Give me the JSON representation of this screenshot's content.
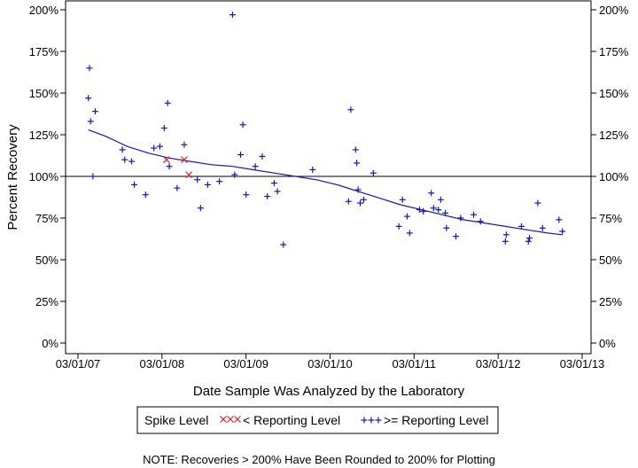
{
  "chart_data": {
    "type": "scatter",
    "title": "",
    "xlabel": "Date Sample Was Analyzed by the Laboratory",
    "ylabel": "Percent Recovery",
    "x_tick_labels": [
      "03/01/07",
      "03/01/08",
      "03/01/09",
      "03/01/10",
      "03/01/11",
      "03/01/12",
      "03/01/13"
    ],
    "y_tick_labels": [
      "0%",
      "25%",
      "50%",
      "75%",
      "100%",
      "125%",
      "150%",
      "175%",
      "200%"
    ],
    "ylim": [
      0,
      200
    ],
    "reference_line": 100,
    "grid": false,
    "legend_placement": "bottom-center",
    "legend_title": "Spike Level",
    "note": "NOTE: Recoveries > 200% Have Been Rounded to 200% for Plotting",
    "colors": {
      "above": "#1515c8",
      "below": "#e0202a",
      "trend": "#1515c8"
    },
    "series": [
      {
        "name": "< Reporting Level",
        "marker": "x",
        "points": [
          {
            "x": "2008-03-20",
            "y": 110
          },
          {
            "x": "2008-06-05",
            "y": 110
          },
          {
            "x": "2008-06-25",
            "y": 101
          }
        ]
      },
      {
        "name": ">= Reporting Level",
        "marker": "+",
        "points": [
          {
            "x": "2007-04-20",
            "y": 165
          },
          {
            "x": "2007-04-15",
            "y": 147
          },
          {
            "x": "2007-04-25",
            "y": 133
          },
          {
            "x": "2007-05-15",
            "y": 139
          },
          {
            "x": "2007-05-05",
            "y": 100
          },
          {
            "x": "2007-09-10",
            "y": 116
          },
          {
            "x": "2007-09-20",
            "y": 110
          },
          {
            "x": "2007-10-20",
            "y": 109
          },
          {
            "x": "2007-11-01",
            "y": 95
          },
          {
            "x": "2007-12-20",
            "y": 89
          },
          {
            "x": "2008-01-25",
            "y": 117
          },
          {
            "x": "2008-02-20",
            "y": 118
          },
          {
            "x": "2008-03-10",
            "y": 129
          },
          {
            "x": "2008-03-25",
            "y": 144
          },
          {
            "x": "2008-04-01",
            "y": 106
          },
          {
            "x": "2008-05-05",
            "y": 93
          },
          {
            "x": "2008-06-05",
            "y": 119
          },
          {
            "x": "2008-08-01",
            "y": 98
          },
          {
            "x": "2008-08-15",
            "y": 81
          },
          {
            "x": "2008-09-15",
            "y": 95
          },
          {
            "x": "2008-11-05",
            "y": 97
          },
          {
            "x": "2009-01-01",
            "y": 197
          },
          {
            "x": "2009-01-10",
            "y": 101
          },
          {
            "x": "2009-02-05",
            "y": 113
          },
          {
            "x": "2009-02-15",
            "y": 131
          },
          {
            "x": "2009-03-01",
            "y": 89
          },
          {
            "x": "2009-04-10",
            "y": 106
          },
          {
            "x": "2009-05-10",
            "y": 112
          },
          {
            "x": "2009-06-01",
            "y": 88
          },
          {
            "x": "2009-07-01",
            "y": 96
          },
          {
            "x": "2009-07-15",
            "y": 91
          },
          {
            "x": "2009-08-10",
            "y": 59
          },
          {
            "x": "2009-12-15",
            "y": 104
          },
          {
            "x": "2010-05-20",
            "y": 85
          },
          {
            "x": "2010-05-30",
            "y": 140
          },
          {
            "x": "2010-06-20",
            "y": 116
          },
          {
            "x": "2010-06-25",
            "y": 108
          },
          {
            "x": "2010-07-01",
            "y": 92
          },
          {
            "x": "2010-07-10",
            "y": 84
          },
          {
            "x": "2010-07-25",
            "y": 86
          },
          {
            "x": "2010-09-05",
            "y": 102
          },
          {
            "x": "2010-12-25",
            "y": 70
          },
          {
            "x": "2011-01-10",
            "y": 86
          },
          {
            "x": "2011-01-30",
            "y": 76
          },
          {
            "x": "2011-02-10",
            "y": 66
          },
          {
            "x": "2011-03-25",
            "y": 80
          },
          {
            "x": "2011-04-10",
            "y": 79
          },
          {
            "x": "2011-05-15",
            "y": 90
          },
          {
            "x": "2011-05-25",
            "y": 81
          },
          {
            "x": "2011-06-15",
            "y": 80
          },
          {
            "x": "2011-06-25",
            "y": 86
          },
          {
            "x": "2011-07-15",
            "y": 78
          },
          {
            "x": "2011-07-20",
            "y": 69
          },
          {
            "x": "2011-08-30",
            "y": 64
          },
          {
            "x": "2011-09-20",
            "y": 75
          },
          {
            "x": "2011-11-15",
            "y": 77
          },
          {
            "x": "2011-12-15",
            "y": 73
          },
          {
            "x": "2012-04-05",
            "y": 65
          },
          {
            "x": "2012-04-01",
            "y": 61
          },
          {
            "x": "2012-06-10",
            "y": 70
          },
          {
            "x": "2012-07-15",
            "y": 63
          },
          {
            "x": "2012-07-10",
            "y": 61
          },
          {
            "x": "2012-08-20",
            "y": 84
          },
          {
            "x": "2012-09-10",
            "y": 69
          },
          {
            "x": "2012-11-20",
            "y": 74
          },
          {
            "x": "2012-12-05",
            "y": 67
          }
        ]
      }
    ],
    "trend": {
      "name": "smoothed trend",
      "points": [
        {
          "x": "2007-04-15",
          "y": 128
        },
        {
          "x": "2007-07-01",
          "y": 124
        },
        {
          "x": "2007-10-01",
          "y": 118
        },
        {
          "x": "2008-01-01",
          "y": 114
        },
        {
          "x": "2008-04-01",
          "y": 111
        },
        {
          "x": "2008-07-01",
          "y": 109
        },
        {
          "x": "2008-10-01",
          "y": 107
        },
        {
          "x": "2009-01-01",
          "y": 106
        },
        {
          "x": "2009-04-01",
          "y": 104
        },
        {
          "x": "2009-07-01",
          "y": 102
        },
        {
          "x": "2009-10-01",
          "y": 100
        },
        {
          "x": "2010-01-01",
          "y": 98
        },
        {
          "x": "2010-04-01",
          "y": 95
        },
        {
          "x": "2010-07-01",
          "y": 91
        },
        {
          "x": "2010-10-01",
          "y": 87
        },
        {
          "x": "2011-01-01",
          "y": 83
        },
        {
          "x": "2011-04-01",
          "y": 80
        },
        {
          "x": "2011-07-01",
          "y": 77
        },
        {
          "x": "2011-10-01",
          "y": 74
        },
        {
          "x": "2012-01-01",
          "y": 72
        },
        {
          "x": "2012-04-01",
          "y": 70
        },
        {
          "x": "2012-07-01",
          "y": 68
        },
        {
          "x": "2012-10-01",
          "y": 66
        },
        {
          "x": "2012-12-05",
          "y": 65
        }
      ]
    }
  }
}
